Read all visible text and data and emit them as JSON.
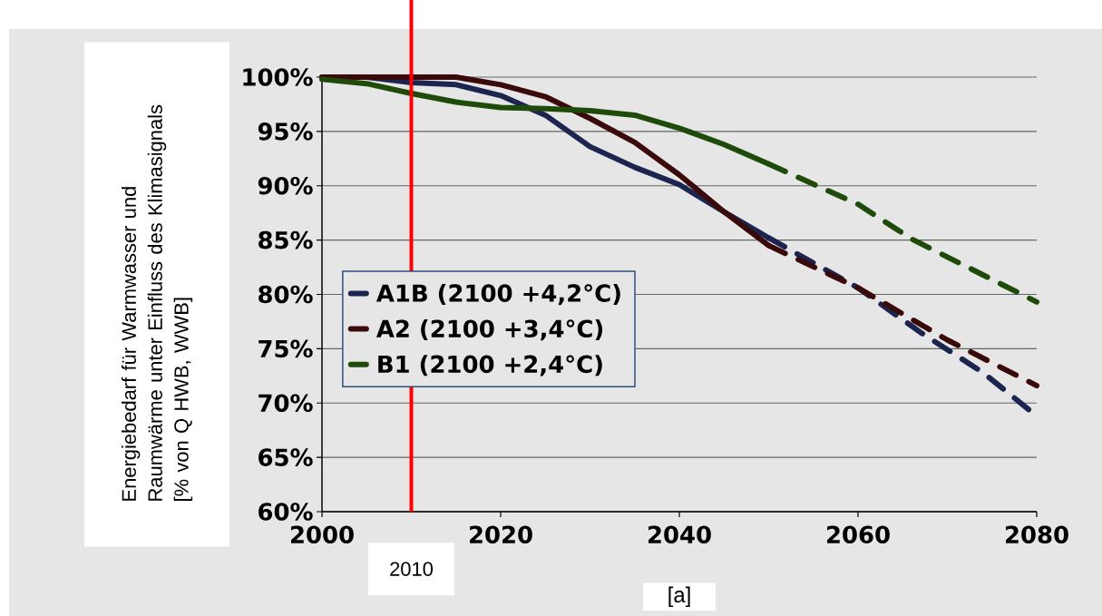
{
  "chart_data": {
    "type": "line",
    "ylabel": "Energiebedarf für Warmwasser und Raumwärme unter Einfluss des Klimasignals [% von Q HWB, WWB]",
    "xlabel": "[a]",
    "xlim": [
      2000,
      2080
    ],
    "xticks": [
      2000,
      2020,
      2040,
      2060,
      2080
    ],
    "ylim": [
      60,
      100
    ],
    "yticks": [
      {
        "value": 60,
        "label": "60%"
      },
      {
        "value": 65,
        "label": "65%"
      },
      {
        "value": 70,
        "label": "70%"
      },
      {
        "value": 75,
        "label": "75%"
      },
      {
        "value": 80,
        "label": "80%"
      },
      {
        "value": 85,
        "label": "85%"
      },
      {
        "value": 90,
        "label": "90%"
      },
      {
        "value": 95,
        "label": "95%"
      },
      {
        "value": 100,
        "label": "100%"
      }
    ],
    "grid": "y",
    "legend": "left",
    "marker": "none",
    "ref_lines": [
      {
        "axis": "x",
        "value": 2010,
        "label": "2010",
        "color": "#ff0000"
      }
    ],
    "series": [
      {
        "name": "A1B (2100 +4,2°C)",
        "color": "#1c2450",
        "line_style": "solid",
        "x": [
          2000,
          2005,
          2010,
          2015,
          2020,
          2025,
          2030,
          2035,
          2040,
          2045,
          2050
        ],
        "values": [
          100,
          100,
          99.5,
          99.3,
          98.3,
          96.5,
          93.6,
          91.7,
          90.1,
          87.6,
          85.2
        ]
      },
      {
        "name": "A2 (2100 +3,4°C)",
        "color": "#3a0a0a",
        "line_style": "solid",
        "x": [
          2000,
          2005,
          2010,
          2015,
          2020,
          2025,
          2030,
          2035,
          2040,
          2045,
          2050
        ],
        "values": [
          100,
          100,
          100,
          100,
          99.3,
          98.2,
          96.2,
          94.0,
          91.0,
          87.6,
          84.5
        ]
      },
      {
        "name": "B1 (2100 +2,4°C)",
        "color": "#1e4a0a",
        "line_style": "solid",
        "x": [
          2000,
          2005,
          2010,
          2015,
          2020,
          2025,
          2030,
          2035,
          2040,
          2045,
          2050
        ],
        "values": [
          99.8,
          99.4,
          98.5,
          97.7,
          97.2,
          97.1,
          96.9,
          96.5,
          95.3,
          93.8,
          92.0
        ]
      },
      {
        "color": "#1c2450",
        "line_style": "dashed",
        "x": [
          2050,
          2060,
          2067,
          2074,
          2080
        ],
        "values": [
          85.2,
          80.6,
          76.5,
          72.8,
          68.8
        ]
      },
      {
        "color": "#3a0a0a",
        "line_style": "dashed",
        "x": [
          2050,
          2060,
          2070,
          2080
        ],
        "values": [
          84.5,
          80.6,
          75.8,
          71.6
        ]
      },
      {
        "color": "#1e4a0a",
        "line_style": "dashed",
        "x": [
          2050,
          2060,
          2066,
          2080
        ],
        "values": [
          92.0,
          88.3,
          85.1,
          79.3
        ]
      }
    ]
  }
}
